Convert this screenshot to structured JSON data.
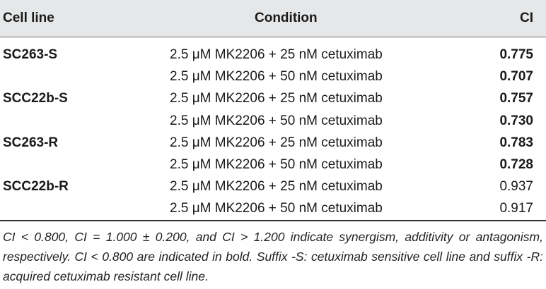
{
  "table": {
    "headers": {
      "cell_line": "Cell line",
      "condition": "Condition",
      "ci": "CI"
    },
    "rows": [
      {
        "cell_line": "SC263-S",
        "condition": "2.5 μM MK2206 + 25 nM cetuximab",
        "ci": "0.775",
        "ci_bold": true
      },
      {
        "cell_line": "",
        "condition": "2.5 μM MK2206 + 50 nM cetuximab",
        "ci": "0.707",
        "ci_bold": true
      },
      {
        "cell_line": "SCC22b-S",
        "condition": "2.5 μM MK2206 + 25 nM cetuximab",
        "ci": "0.757",
        "ci_bold": true
      },
      {
        "cell_line": "",
        "condition": "2.5 μM MK2206 + 50 nM cetuximab",
        "ci": "0.730",
        "ci_bold": true
      },
      {
        "cell_line": "SC263-R",
        "condition": "2.5 μM MK2206 + 25 nM cetuximab",
        "ci": "0.783",
        "ci_bold": true
      },
      {
        "cell_line": "",
        "condition": "2.5 μM MK2206 + 50 nM cetuximab",
        "ci": "0.728",
        "ci_bold": true
      },
      {
        "cell_line": "SCC22b-R",
        "condition": "2.5 μM MK2206 + 25 nM cetuximab",
        "ci": "0.937",
        "ci_bold": false
      },
      {
        "cell_line": "",
        "condition": "2.5 μM MK2206 + 50 nM cetuximab",
        "ci": "0.917",
        "ci_bold": false
      }
    ],
    "footnote": "CI < 0.800, CI = 1.000 ± 0.200, and CI > 1.200 indicate synergism, additivity or antagonism, respectively. CI < 0.800 are indicated in bold. Suffix -S: cetuximab sensitive cell line and suffix -R: acquired cetuximab resistant cell line.",
    "colors": {
      "header_bg": "#e6e7e8",
      "text": "#1a1a1a"
    }
  }
}
